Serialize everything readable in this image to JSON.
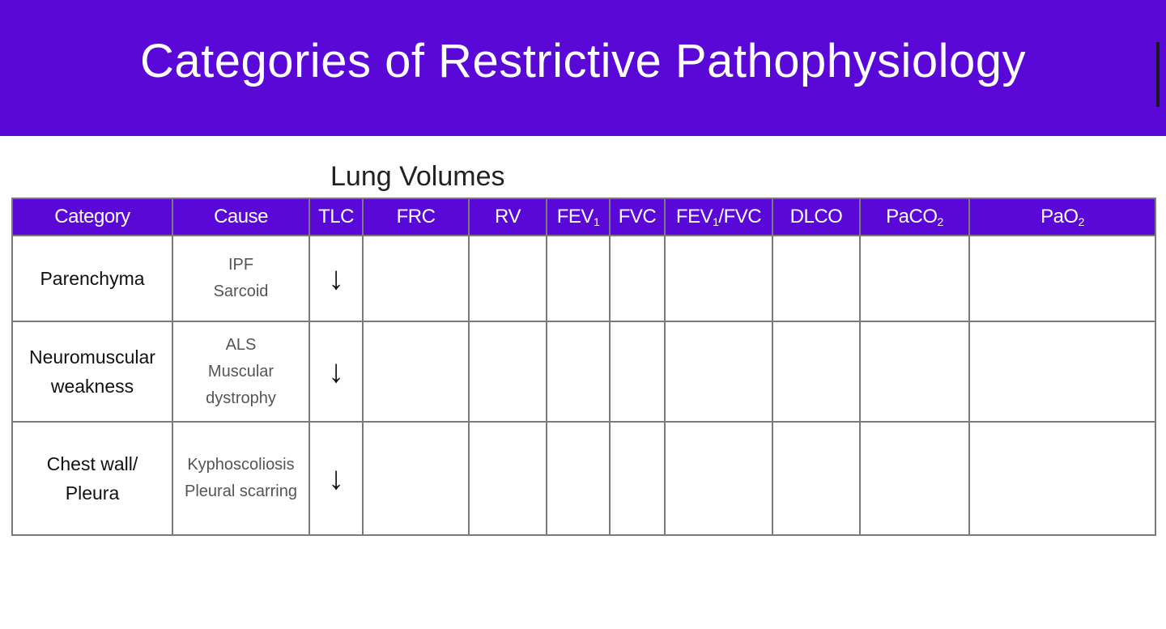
{
  "slide": {
    "title": "Categories of Restrictive Pathophysiology",
    "subtitle": "Lung Volumes"
  },
  "table": {
    "headers": [
      {
        "text": "Category",
        "sub": ""
      },
      {
        "text": "Cause",
        "sub": ""
      },
      {
        "text": "TLC",
        "sub": ""
      },
      {
        "text": "FRC",
        "sub": ""
      },
      {
        "text": "RV",
        "sub": ""
      },
      {
        "text": "FEV",
        "sub": "1"
      },
      {
        "text": "FVC",
        "sub": ""
      },
      {
        "text": "FEV",
        "sub": "1",
        "suffix": "/FVC"
      },
      {
        "text": "DLCO",
        "sub": ""
      },
      {
        "text": "PaCO",
        "sub": "2"
      },
      {
        "text": "PaO",
        "sub": "2"
      }
    ],
    "rows": [
      {
        "category": [
          "Parenchyma"
        ],
        "cause": [
          "IPF",
          "Sarcoid"
        ],
        "tlc": "↓"
      },
      {
        "category": [
          "Neuromuscular",
          "weakness"
        ],
        "cause": [
          "ALS",
          "Muscular",
          "dystrophy"
        ],
        "tlc": "↓"
      },
      {
        "category": [
          "Chest wall/",
          "Pleura"
        ],
        "cause": [
          "Kyphoscoliosis",
          "Pleural scarring"
        ],
        "tlc": "↓"
      }
    ]
  },
  "colors": {
    "header_bg": "#5a08d8",
    "header_text": "#ffffff"
  }
}
